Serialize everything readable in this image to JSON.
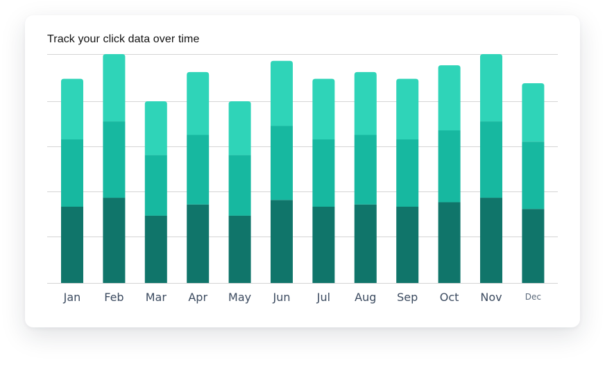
{
  "chart_data": {
    "type": "bar",
    "stacked": true,
    "title": "Track your click data over time",
    "xlabel": "",
    "ylabel": "",
    "categories": [
      "Jan",
      "Feb",
      "Mar",
      "Apr",
      "May",
      "Jun",
      "Jul",
      "Aug",
      "Sep",
      "Oct",
      "Nov",
      "Dec"
    ],
    "series": [
      {
        "values": [
          34,
          38,
          30,
          35,
          30,
          37,
          34,
          35,
          34,
          36,
          38,
          33
        ],
        "color": "#10756a"
      },
      {
        "values": [
          30,
          34,
          27,
          31,
          27,
          33,
          30,
          31,
          30,
          32,
          34,
          30
        ],
        "color": "#17b8a0"
      },
      {
        "values": [
          27,
          30,
          24,
          28,
          24,
          29,
          27,
          28,
          27,
          29,
          30,
          26
        ],
        "color": "#2fd4b8"
      }
    ],
    "ylim": [
      0,
      102
    ],
    "gridlines": 6,
    "grid": true,
    "legend": "none"
  }
}
